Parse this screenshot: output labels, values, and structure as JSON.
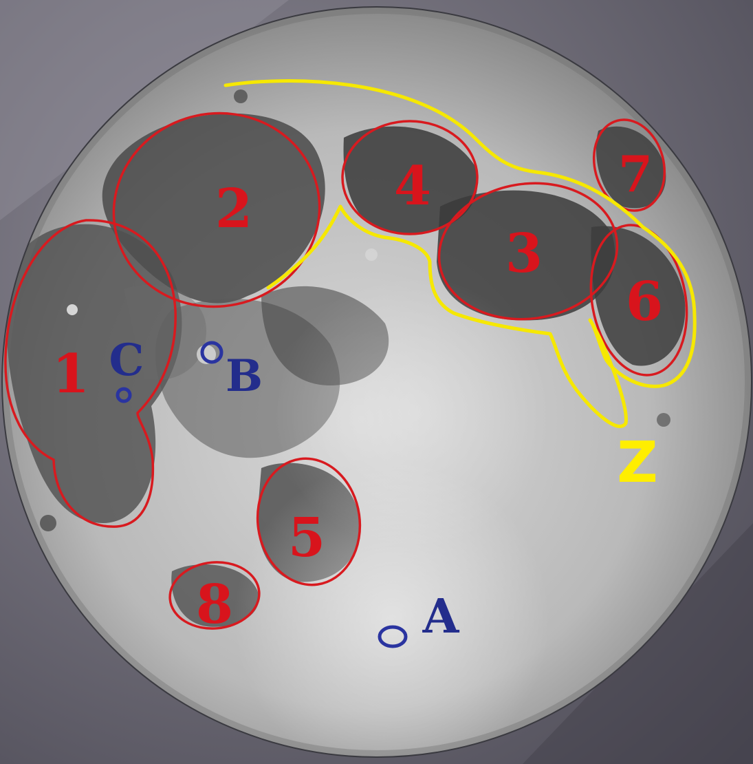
{
  "regions": [
    {
      "label": "1"
    },
    {
      "label": "2"
    },
    {
      "label": "3"
    },
    {
      "label": "4"
    },
    {
      "label": "5"
    },
    {
      "label": "6"
    },
    {
      "label": "7"
    },
    {
      "label": "8"
    }
  ],
  "points": [
    {
      "label": "A"
    },
    {
      "label": "B"
    },
    {
      "label": "C"
    }
  ],
  "zone": {
    "label": "Z"
  },
  "colors": {
    "region_outline": "#d81a1f",
    "zone_outline": "#f6e800",
    "point_marker": "#2a34a0",
    "background": "#6f6c78"
  }
}
